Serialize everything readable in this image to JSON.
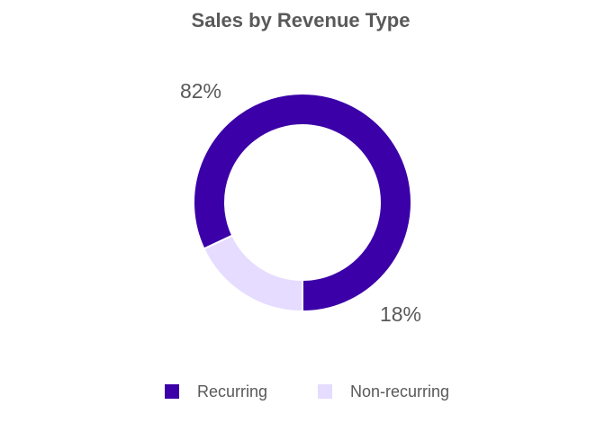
{
  "chart_data": {
    "type": "pie",
    "variant": "donut",
    "title": "Sales by Revenue Type",
    "slices": [
      {
        "label": "Recurring",
        "value": 82,
        "display": "82%",
        "color": "#3b00a8"
      },
      {
        "label": "Non-recurring",
        "value": 18,
        "display": "18%",
        "color": "#e6dcff"
      }
    ],
    "legend": {
      "position": "bottom",
      "entries": [
        "Recurring",
        "Non-recurring"
      ]
    }
  }
}
